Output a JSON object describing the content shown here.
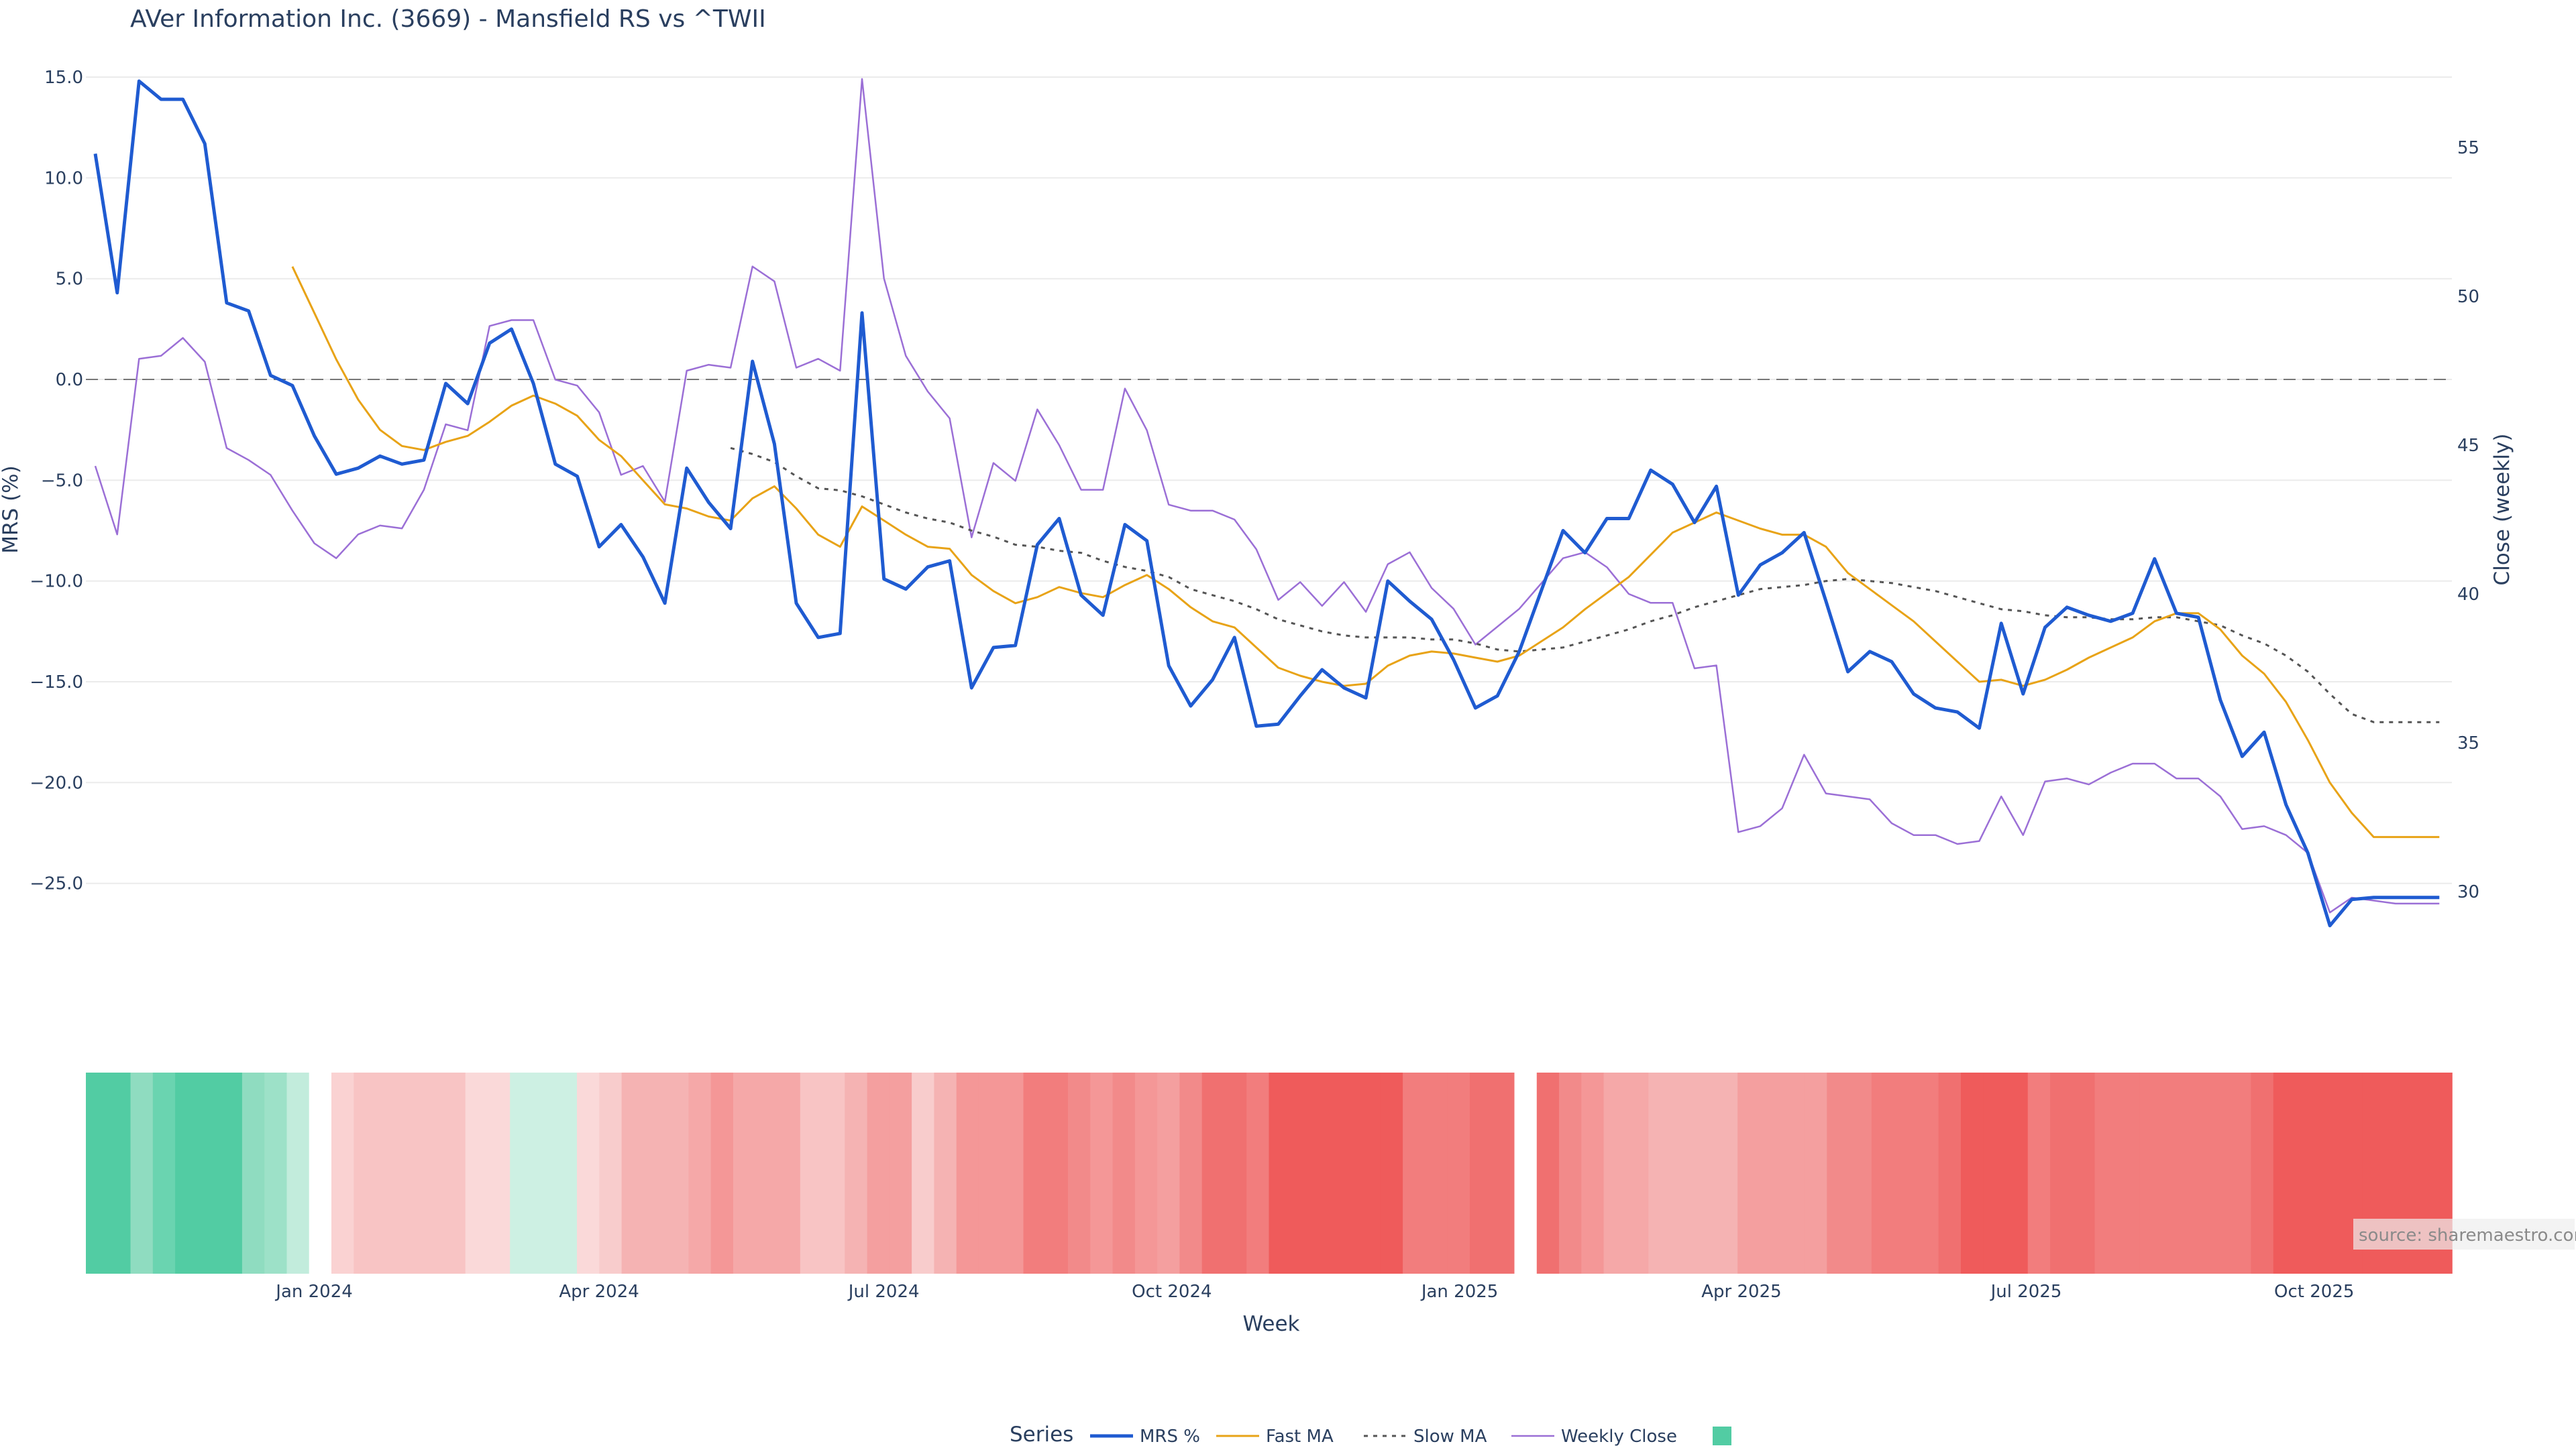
{
  "chart_data": {
    "type": "line",
    "title": "AVer Information Inc. (3669) - Mansfield RS vs ^TWII",
    "xlabel": "Week",
    "ylabel": "MRS (%)",
    "y2label": "Close (weekly)",
    "ylim": [
      -29.4,
      15.5
    ],
    "y2lim": [
      27.3,
      57.7
    ],
    "yticks": [
      15,
      10,
      5,
      0,
      -5,
      -10,
      -15,
      -20,
      -25
    ],
    "y2ticks": [
      55,
      50,
      45,
      40,
      35,
      30
    ],
    "x_start": "2023-10-20",
    "x_end": "2025-11-14",
    "xticks": [
      {
        "date": "2024-01-01",
        "label": "Jan 2024"
      },
      {
        "date": "2024-04-01",
        "label": "Apr 2024"
      },
      {
        "date": "2024-07-01",
        "label": "Jul 2024"
      },
      {
        "date": "2024-10-01",
        "label": "Oct 2024"
      },
      {
        "date": "2025-01-01",
        "label": "Jan 2025"
      },
      {
        "date": "2025-04-01",
        "label": "Apr 2025"
      },
      {
        "date": "2025-07-01",
        "label": "Jul 2025"
      },
      {
        "date": "2025-10-01",
        "label": "Oct 2025"
      }
    ],
    "zero_line": 0,
    "grid": true,
    "legend_title": "Series",
    "legend_position": "bottom",
    "x": [
      "2023-10-23",
      "2023-10-30",
      "2023-11-06",
      "2023-11-13",
      "2023-11-20",
      "2023-11-27",
      "2023-12-04",
      "2023-12-11",
      "2023-12-18",
      "2023-12-25",
      "2024-01-01",
      "2024-01-08",
      "2024-01-15",
      "2024-01-22",
      "2024-01-29",
      "2024-02-05",
      "2024-02-12",
      "2024-02-19",
      "2024-02-26",
      "2024-03-04",
      "2024-03-11",
      "2024-03-18",
      "2024-03-25",
      "2024-04-01",
      "2024-04-08",
      "2024-04-15",
      "2024-04-22",
      "2024-04-29",
      "2024-05-06",
      "2024-05-13",
      "2024-05-20",
      "2024-05-27",
      "2024-06-03",
      "2024-06-10",
      "2024-06-17",
      "2024-06-24",
      "2024-07-01",
      "2024-07-08",
      "2024-07-15",
      "2024-07-22",
      "2024-07-29",
      "2024-08-05",
      "2024-08-12",
      "2024-08-19",
      "2024-08-26",
      "2024-09-02",
      "2024-09-09",
      "2024-09-16",
      "2024-09-23",
      "2024-09-30",
      "2024-10-07",
      "2024-10-14",
      "2024-10-21",
      "2024-10-28",
      "2024-11-04",
      "2024-11-11",
      "2024-11-18",
      "2024-11-25",
      "2024-12-02",
      "2024-12-09",
      "2024-12-16",
      "2024-12-23",
      "2024-12-30",
      "2025-01-06",
      "2025-01-13",
      "2025-01-20",
      "2025-02-03",
      "2025-02-10",
      "2025-02-17",
      "2025-02-24",
      "2025-03-03",
      "2025-03-10",
      "2025-03-17",
      "2025-03-24",
      "2025-03-31",
      "2025-04-07",
      "2025-04-14",
      "2025-04-21",
      "2025-04-28",
      "2025-05-05",
      "2025-05-12",
      "2025-05-19",
      "2025-05-26",
      "2025-06-02",
      "2025-06-09",
      "2025-06-16",
      "2025-06-23",
      "2025-06-30",
      "2025-07-07",
      "2025-07-14",
      "2025-07-21",
      "2025-07-28",
      "2025-08-04",
      "2025-08-11",
      "2025-08-18",
      "2025-08-25",
      "2025-09-01",
      "2025-09-08",
      "2025-09-15",
      "2025-09-22",
      "2025-09-29",
      "2025-10-06",
      "2025-10-13",
      "2025-10-20",
      "2025-10-27",
      "2025-11-03",
      "2025-11-10"
    ],
    "series": [
      {
        "name": "MRS %",
        "axis": "y",
        "color": "#1f5bd1",
        "dash": "solid",
        "width": 5,
        "values": [
          11.2,
          4.3,
          14.8,
          13.9,
          13.9,
          11.7,
          3.8,
          3.4,
          0.2,
          -0.3,
          -2.8,
          -4.7,
          -4.4,
          -3.8,
          -4.2,
          -4.0,
          -0.2,
          -1.2,
          1.8,
          2.5,
          -0.2,
          -4.2,
          -4.8,
          -8.3,
          -7.2,
          -8.8,
          -11.1,
          -4.4,
          -6.1,
          -7.4,
          0.9,
          -3.2,
          -11.1,
          -12.8,
          -12.6,
          3.3,
          -9.9,
          -10.4,
          -9.3,
          -9.0,
          -15.3,
          -13.3,
          -13.2,
          -8.2,
          -6.9,
          -10.7,
          -11.7,
          -7.2,
          -8.0,
          -14.2,
          -16.2,
          -14.9,
          -12.8,
          -17.2,
          -17.1,
          -15.7,
          -14.4,
          -15.3,
          -15.8,
          -10.0,
          -11.0,
          -11.9,
          -13.9,
          -16.3,
          -15.7,
          -13.5,
          -7.5,
          -8.6,
          -6.9,
          -6.9,
          -4.5,
          -5.2,
          -7.1,
          -5.3,
          -10.7,
          -9.2,
          -8.6,
          -7.6,
          -11.0,
          -14.5,
          -13.5,
          -14.0,
          -15.6,
          -16.3,
          -16.5,
          -17.3,
          -12.1,
          -15.6,
          -12.3,
          -11.3,
          -11.7,
          -12.0,
          -11.6,
          -8.9,
          -11.6,
          -11.8,
          -15.9,
          -18.7,
          -17.5,
          -21.1,
          -23.5,
          -27.1,
          -25.8,
          -25.7,
          -25.7,
          -25.7,
          -25.7
        ]
      },
      {
        "name": "Fast MA",
        "axis": "y",
        "color": "#e8a317",
        "dash": "solid",
        "width": 3,
        "values": [
          null,
          null,
          null,
          null,
          null,
          null,
          null,
          null,
          null,
          5.6,
          3.3,
          1.0,
          -1.0,
          -2.5,
          -3.3,
          -3.5,
          -3.1,
          -2.8,
          -2.1,
          -1.3,
          -0.8,
          -1.2,
          -1.8,
          -3.0,
          -3.8,
          -5.0,
          -6.2,
          -6.4,
          -6.8,
          -7.0,
          -5.9,
          -5.3,
          -6.4,
          -7.7,
          -8.3,
          -6.3,
          -7.0,
          -7.7,
          -8.3,
          -8.4,
          -9.7,
          -10.5,
          -11.1,
          -10.8,
          -10.3,
          -10.6,
          -10.8,
          -10.2,
          -9.7,
          -10.4,
          -11.3,
          -12.0,
          -12.3,
          -13.3,
          -14.3,
          -14.7,
          -15.0,
          -15.2,
          -15.1,
          -14.2,
          -13.7,
          -13.5,
          -13.6,
          -13.8,
          -14.0,
          -13.7,
          -12.3,
          -11.4,
          -10.6,
          -9.8,
          -8.7,
          -7.6,
          -7.1,
          -6.6,
          -7.0,
          -7.4,
          -7.7,
          -7.7,
          -8.3,
          -9.6,
          -10.4,
          -11.2,
          -12.0,
          -13.0,
          -14.0,
          -15.0,
          -14.9,
          -15.2,
          -14.9,
          -14.4,
          -13.8,
          -13.3,
          -12.8,
          -12.0,
          -11.6,
          -11.6,
          -12.4,
          -13.7,
          -14.6,
          -16.0,
          -17.9,
          -20.0,
          -21.5,
          -22.7,
          -22.7,
          -22.7,
          -22.7
        ]
      },
      {
        "name": "Slow MA",
        "axis": "y",
        "color": "#555555",
        "dash": "6,8",
        "width": 3,
        "values": [
          null,
          null,
          null,
          null,
          null,
          null,
          null,
          null,
          null,
          null,
          null,
          null,
          null,
          null,
          null,
          null,
          null,
          null,
          null,
          null,
          null,
          null,
          null,
          null,
          null,
          null,
          null,
          null,
          null,
          -3.4,
          -3.7,
          -4.1,
          -4.8,
          -5.4,
          -5.5,
          -5.8,
          -6.2,
          -6.6,
          -6.9,
          -7.1,
          -7.5,
          -7.8,
          -8.2,
          -8.3,
          -8.5,
          -8.6,
          -9.0,
          -9.3,
          -9.5,
          -9.8,
          -10.4,
          -10.7,
          -11.0,
          -11.4,
          -11.9,
          -12.2,
          -12.5,
          -12.7,
          -12.8,
          -12.8,
          -12.8,
          -12.9,
          -12.9,
          -13.1,
          -13.4,
          -13.5,
          -13.3,
          -13.0,
          -12.7,
          -12.4,
          -12.0,
          -11.7,
          -11.3,
          -11.0,
          -10.7,
          -10.4,
          -10.3,
          -10.2,
          -10.0,
          -9.9,
          -10.0,
          -10.1,
          -10.3,
          -10.5,
          -10.8,
          -11.1,
          -11.4,
          -11.5,
          -11.7,
          -11.8,
          -11.8,
          -11.9,
          -11.9,
          -11.8,
          -11.8,
          -12.0,
          -12.2,
          -12.7,
          -13.1,
          -13.7,
          -14.5,
          -15.6,
          -16.6,
          -17.0,
          -17.0,
          -17.0,
          -17.0
        ]
      },
      {
        "name": "Weekly Close",
        "axis": "y2",
        "color": "#9b6fd6",
        "dash": "solid",
        "width": 2.5,
        "values": [
          44.3,
          42.0,
          47.9,
          48.0,
          48.6,
          47.8,
          44.9,
          44.5,
          44.0,
          42.8,
          41.7,
          41.2,
          42.0,
          42.3,
          42.2,
          43.5,
          45.7,
          45.5,
          49.0,
          49.2,
          49.2,
          47.2,
          47.0,
          46.1,
          44.0,
          44.3,
          43.1,
          47.5,
          47.7,
          47.6,
          51.0,
          50.5,
          47.6,
          47.9,
          47.5,
          57.3,
          50.6,
          48.0,
          46.8,
          45.9,
          41.9,
          44.4,
          43.8,
          46.2,
          45.0,
          43.5,
          43.5,
          46.9,
          45.5,
          43.0,
          42.8,
          42.8,
          42.5,
          41.5,
          39.8,
          40.4,
          39.6,
          40.4,
          39.4,
          41.0,
          41.4,
          40.2,
          39.5,
          38.3,
          38.9,
          39.5,
          41.2,
          41.4,
          40.9,
          40.0,
          39.7,
          39.7,
          37.5,
          37.6,
          32.0,
          32.2,
          32.8,
          34.6,
          33.3,
          33.2,
          33.1,
          32.3,
          31.9,
          31.9,
          31.6,
          31.7,
          33.2,
          31.9,
          33.7,
          33.8,
          33.6,
          34.0,
          34.3,
          34.3,
          33.8,
          33.8,
          33.2,
          32.1,
          32.2,
          31.9,
          31.3,
          29.3,
          29.8,
          29.7,
          29.6,
          29.6,
          29.6
        ]
      }
    ],
    "heatmap_colors": [
      "#52cca3",
      "#52cca3",
      "#8fdcc0",
      "#6ad4b0",
      "#52cca3",
      "#52cca3",
      "#52cca3",
      "#8fdcc0",
      "#9de1c8",
      "#c2ecdc",
      "#ffffff",
      "#fad2d2",
      "#f8c4c4",
      "#f8c4c4",
      "#f8c4c4",
      "#f8c4c4",
      "#f8c4c4",
      "#fad9d9",
      "#fad9d9",
      "#cdf0e3",
      "#cdf0e3",
      "#cdf0e3",
      "#fad9d9",
      "#f8cccc",
      "#f5b3b3",
      "#f5b3b3",
      "#f5b3b3",
      "#f5a8a8",
      "#f49797",
      "#f5a8a8",
      "#f5a8a8",
      "#f5a8a8",
      "#f8c4c4",
      "#f8c4c4",
      "#f5b3b3",
      "#f49f9f",
      "#f49f9f",
      "#f8cccc",
      "#f5b3b3",
      "#f49797",
      "#f49797",
      "#f49797",
      "#f27d7d",
      "#f27d7d",
      "#f28a8a",
      "#f49797",
      "#f28a8a",
      "#f49797",
      "#f49f9f",
      "#f28a8a",
      "#f07070",
      "#f07070",
      "#f27d7d",
      "#ef5b5b",
      "#ef5b5b",
      "#ef5b5b",
      "#ef5b5b",
      "#ef5b5b",
      "#ef5b5b",
      "#f27d7d",
      "#f27d7d",
      "#f27d7d",
      "#f07070",
      "#f07070",
      "#ffffff",
      "#f07070",
      "#f28a8a",
      "#f49797",
      "#f5a8a8",
      "#f5a8a8",
      "#f5b3b3",
      "#f5b3b3",
      "#f5b3b3",
      "#f5b3b3",
      "#f49f9f",
      "#f49f9f",
      "#f49f9f",
      "#f49f9f",
      "#f28a8a",
      "#f28a8a",
      "#f27d7d",
      "#f27d7d",
      "#f27d7d",
      "#f07070",
      "#ef5b5b",
      "#ef5b5b",
      "#ef5b5b",
      "#f27d7d",
      "#f07070",
      "#f07070",
      "#f27d7d",
      "#f27d7d",
      "#f27d7d",
      "#f27d7d",
      "#f27d7d",
      "#f27d7d",
      "#f27d7d",
      "#f07070",
      "#ef5b5b",
      "#ef5b5b",
      "#ef5b5b",
      "#ef5b5b",
      "#ef5b5b",
      "#ef5b5b",
      "#ef5b5b",
      "#ef5b5b"
    ],
    "legend_swatch_color": "#52cca3",
    "source": "source: sharemaestro.com"
  }
}
